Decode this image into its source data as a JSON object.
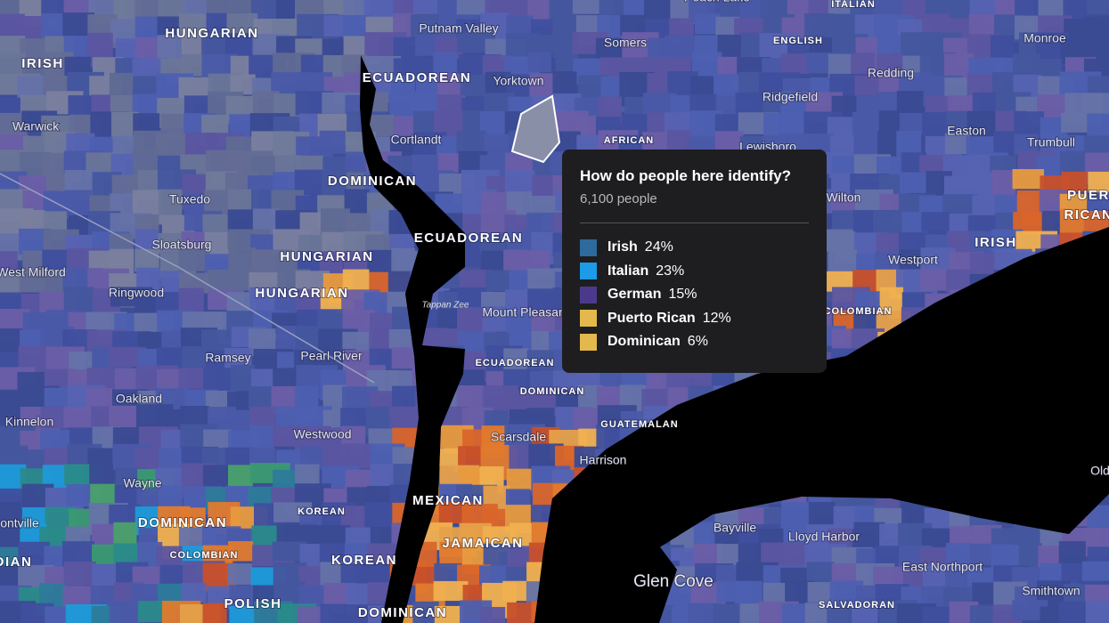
{
  "map": {
    "labels": [
      "Peach Lake",
      "ITALIAN",
      "HUNGARIAN",
      "IRISH",
      "Putnam Valley",
      "Somers",
      "ENGLISH",
      "Monroe",
      "ECUADOREAN",
      "Yorktown",
      "Redding",
      "Ridgefield",
      "Warwick",
      "Cortlandt",
      "AFRICAN",
      "Lewisboro",
      "Easton",
      "Trumbull",
      "DOMINICAN",
      "Tuxedo",
      "Wilton",
      "PUER",
      "RICAN",
      "ECUADOREAN",
      "IRISH",
      "Sloatsburg",
      "HUNGARIAN",
      "Westport",
      "West Milford",
      "Ringwood",
      "HUNGARIAN",
      "Tappan Zee",
      "Mount Pleasant",
      "COLOMBIAN",
      "Ramsey",
      "Pearl River",
      "ECUADOREAN",
      "DOMINICAN",
      "Oakland",
      "Kinnelon",
      "GUATEMALAN",
      "Westwood",
      "Scarsdale",
      "Harrison",
      "Wayne",
      "MEXICAN",
      "KOREAN",
      "DOMINICAN",
      "Bayville",
      "Lloyd Harbor",
      "JAMAICAN",
      "COLOMBIAN",
      "KOREAN",
      "Glen Cove",
      "East Northport",
      "Smithtown",
      "ontville",
      "DIAN",
      "POLISH",
      "DOMINICAN",
      "SALVADORAN",
      "Old"
    ]
  },
  "tooltip": {
    "title": "How do people here identify?",
    "subtitle": "6,100 people",
    "items": [
      {
        "name": "Irish",
        "percent": "24%",
        "color": "#2c6b9c"
      },
      {
        "name": "Italian",
        "percent": "23%",
        "color": "#1c9be6"
      },
      {
        "name": "German",
        "percent": "15%",
        "color": "#4b3a8c"
      },
      {
        "name": "Puerto Rican",
        "percent": "12%",
        "color": "#e3b84c"
      },
      {
        "name": "Dominican",
        "percent": "6%",
        "color": "#e3b84c"
      }
    ]
  }
}
